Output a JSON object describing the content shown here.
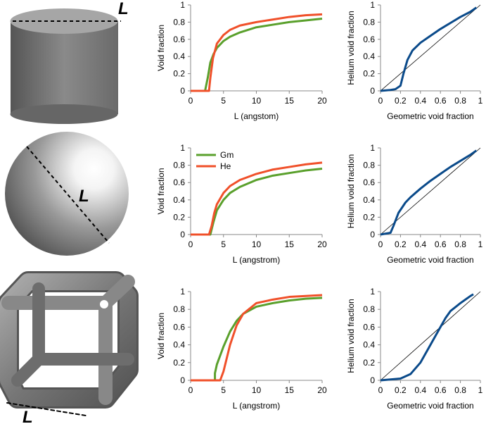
{
  "shape_labels": [
    "L",
    "L",
    "L"
  ],
  "chart_data": [
    {
      "type": "line",
      "xlabel": "L (angstom)",
      "ylabel": "Void fraction",
      "xlim": [
        0,
        20
      ],
      "xticks": [
        0,
        5,
        10,
        15,
        20
      ],
      "ylim": [
        0,
        1
      ],
      "yticks": [
        0,
        0.2,
        0.4,
        0.6,
        0.8,
        1
      ],
      "series": [
        {
          "name": "Gm",
          "color": "#5aa02c",
          "x": [
            0,
            2.2,
            2.6,
            3,
            3.5,
            4,
            5,
            6,
            7.5,
            10,
            12.5,
            15,
            17.5,
            20
          ],
          "values": [
            0,
            0,
            0.15,
            0.33,
            0.43,
            0.5,
            0.58,
            0.63,
            0.68,
            0.74,
            0.77,
            0.8,
            0.82,
            0.84
          ]
        },
        {
          "name": "He",
          "color": "#f0502a",
          "x": [
            0,
            2.8,
            3,
            3.4,
            4,
            5,
            6,
            7.5,
            10,
            12.5,
            15,
            17.5,
            20
          ],
          "values": [
            0,
            0,
            0.15,
            0.38,
            0.55,
            0.65,
            0.71,
            0.76,
            0.8,
            0.83,
            0.86,
            0.88,
            0.89
          ]
        }
      ]
    },
    {
      "type": "line",
      "xlabel": "Geometric void fraction",
      "ylabel": "Helium void fraction",
      "xlim": [
        0,
        1
      ],
      "xticks": [
        0,
        0.2,
        0.4,
        0.6,
        0.8,
        1
      ],
      "ylim": [
        0,
        1
      ],
      "yticks": [
        0,
        0.2,
        0.4,
        0.6,
        0.8,
        1
      ],
      "diagonal": true,
      "series": [
        {
          "color": "#0a4a8a",
          "x": [
            0,
            0.1,
            0.15,
            0.2,
            0.23,
            0.27,
            0.32,
            0.4,
            0.5,
            0.6,
            0.7,
            0.8,
            0.9,
            0.96
          ],
          "values": [
            0,
            0.01,
            0.02,
            0.06,
            0.2,
            0.36,
            0.47,
            0.56,
            0.64,
            0.72,
            0.79,
            0.86,
            0.92,
            0.97
          ]
        }
      ]
    },
    {
      "type": "line",
      "xlabel": "L (angstrom)",
      "ylabel": "Void fraction",
      "legend": "top-left",
      "xlim": [
        0,
        20
      ],
      "xticks": [
        0,
        5,
        10,
        15,
        20
      ],
      "ylim": [
        0,
        1
      ],
      "yticks": [
        0,
        0.2,
        0.4,
        0.6,
        0.8,
        1
      ],
      "series": [
        {
          "name": "Gm",
          "color": "#5aa02c",
          "x": [
            0,
            3,
            3.5,
            4,
            5,
            6,
            7.5,
            10,
            12.5,
            15,
            17.5,
            20
          ],
          "values": [
            0,
            0,
            0.15,
            0.28,
            0.4,
            0.48,
            0.55,
            0.63,
            0.68,
            0.71,
            0.74,
            0.76
          ]
        },
        {
          "name": "He",
          "color": "#f0502a",
          "x": [
            0,
            2.8,
            3.2,
            3.6,
            4,
            5,
            6,
            7.5,
            10,
            12.5,
            15,
            17.5,
            20
          ],
          "values": [
            0,
            0,
            0.1,
            0.25,
            0.35,
            0.48,
            0.56,
            0.63,
            0.7,
            0.75,
            0.78,
            0.81,
            0.83
          ]
        }
      ]
    },
    {
      "type": "line",
      "xlabel": "Geometric void fraction",
      "ylabel": "Helium void fraction",
      "xlim": [
        0,
        1
      ],
      "xticks": [
        0,
        0.2,
        0.4,
        0.6,
        0.8,
        1
      ],
      "ylim": [
        0,
        1
      ],
      "yticks": [
        0,
        0.2,
        0.4,
        0.6,
        0.8,
        1
      ],
      "diagonal": true,
      "series": [
        {
          "color": "#0a4a8a",
          "x": [
            0,
            0.05,
            0.1,
            0.13,
            0.18,
            0.25,
            0.3,
            0.4,
            0.5,
            0.6,
            0.7,
            0.8,
            0.9,
            0.96
          ],
          "values": [
            0,
            0.01,
            0.02,
            0.1,
            0.25,
            0.37,
            0.43,
            0.53,
            0.62,
            0.7,
            0.78,
            0.85,
            0.92,
            0.97
          ]
        }
      ]
    },
    {
      "type": "line",
      "xlabel": "L (angstrom)",
      "ylabel": "Void fraction",
      "xlim": [
        0,
        20
      ],
      "xticks": [
        0,
        5,
        10,
        15,
        20
      ],
      "ylim": [
        0,
        1
      ],
      "yticks": [
        0,
        0.2,
        0.4,
        0.6,
        0.8,
        1
      ],
      "series": [
        {
          "name": "Gm",
          "color": "#5aa02c",
          "x": [
            0,
            3.7,
            3.7,
            4,
            5,
            6,
            7,
            8,
            10,
            12.5,
            15,
            17.5,
            20
          ],
          "values": [
            0,
            0,
            0.08,
            0.18,
            0.38,
            0.55,
            0.67,
            0.75,
            0.83,
            0.87,
            0.9,
            0.92,
            0.93
          ]
        },
        {
          "name": "He",
          "color": "#f0502a",
          "x": [
            0,
            4.5,
            5,
            5.5,
            6,
            7,
            8,
            10,
            12.5,
            15,
            17.5,
            20
          ],
          "values": [
            0,
            0,
            0.1,
            0.25,
            0.4,
            0.62,
            0.75,
            0.87,
            0.91,
            0.94,
            0.95,
            0.96
          ]
        }
      ]
    },
    {
      "type": "line",
      "xlabel": "Geometric void fraction",
      "ylabel": "Helium void fraction",
      "xlim": [
        0,
        1
      ],
      "xticks": [
        0,
        0.2,
        0.4,
        0.6,
        0.8,
        1
      ],
      "ylim": [
        0,
        1
      ],
      "yticks": [
        0,
        0.2,
        0.4,
        0.6,
        0.8,
        1
      ],
      "diagonal": true,
      "series": [
        {
          "color": "#0a4a8a",
          "x": [
            0,
            0.2,
            0.3,
            0.4,
            0.5,
            0.6,
            0.65,
            0.7,
            0.8,
            0.9,
            0.93
          ],
          "values": [
            0,
            0.02,
            0.07,
            0.2,
            0.4,
            0.6,
            0.7,
            0.78,
            0.87,
            0.95,
            0.97
          ]
        }
      ]
    }
  ]
}
